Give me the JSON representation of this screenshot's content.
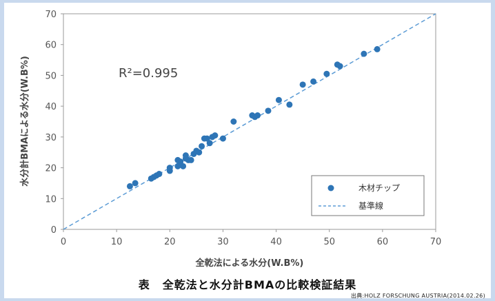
{
  "chart_data": {
    "type": "scatter",
    "xlabel": "全乾法による水分(W.B%)",
    "ylabel": "水分計BMAによる水分(W.B%)",
    "xlim": [
      0,
      70
    ],
    "ylim": [
      0,
      70
    ],
    "xticks": [
      "0",
      "10",
      "20",
      "30",
      "40",
      "50",
      "60",
      "70"
    ],
    "yticks": [
      "0",
      "10",
      "20",
      "30",
      "40",
      "50",
      "60",
      "70"
    ],
    "annotation": "R²=0.995",
    "grid": false,
    "legend_position": "bottom-right",
    "series": [
      {
        "name": "木材チップ",
        "color": "#2e75b6",
        "points": [
          [
            12.5,
            14
          ],
          [
            13.5,
            15
          ],
          [
            16.5,
            16.5
          ],
          [
            17,
            17
          ],
          [
            17.5,
            17.5
          ],
          [
            18,
            18
          ],
          [
            20,
            19
          ],
          [
            20,
            20
          ],
          [
            21.5,
            20.5
          ],
          [
            21.5,
            22.5
          ],
          [
            22,
            21
          ],
          [
            22,
            22
          ],
          [
            22.5,
            20.5
          ],
          [
            23,
            23
          ],
          [
            23,
            24
          ],
          [
            23.5,
            22.5
          ],
          [
            24,
            22.5
          ],
          [
            24.5,
            24.5
          ],
          [
            25,
            25.5
          ],
          [
            25.5,
            25
          ],
          [
            26,
            27
          ],
          [
            26.5,
            29.5
          ],
          [
            27,
            29.5
          ],
          [
            27.5,
            28
          ],
          [
            28,
            30
          ],
          [
            28.5,
            30.5
          ],
          [
            30,
            29.5
          ],
          [
            32,
            35
          ],
          [
            35.5,
            37
          ],
          [
            36,
            36.5
          ],
          [
            36.5,
            37
          ],
          [
            38.5,
            38.5
          ],
          [
            40.5,
            42
          ],
          [
            42.5,
            40.5
          ],
          [
            45,
            47
          ],
          [
            47,
            48
          ],
          [
            49.5,
            50.5
          ],
          [
            51.5,
            53.5
          ],
          [
            52,
            53
          ],
          [
            56.5,
            57
          ],
          [
            59,
            58.5
          ]
        ]
      },
      {
        "name": "基準線",
        "color": "#5b9bd5",
        "style": "dashed",
        "points": [
          [
            0,
            0
          ],
          [
            70,
            70
          ]
        ]
      }
    ]
  },
  "caption": {
    "prefix": "表",
    "text": "全乾法と水分計BMAの比較検証結果"
  },
  "source": "出典:HOLZ FORSCHUNG AUSTRIA(2014.02.26)"
}
